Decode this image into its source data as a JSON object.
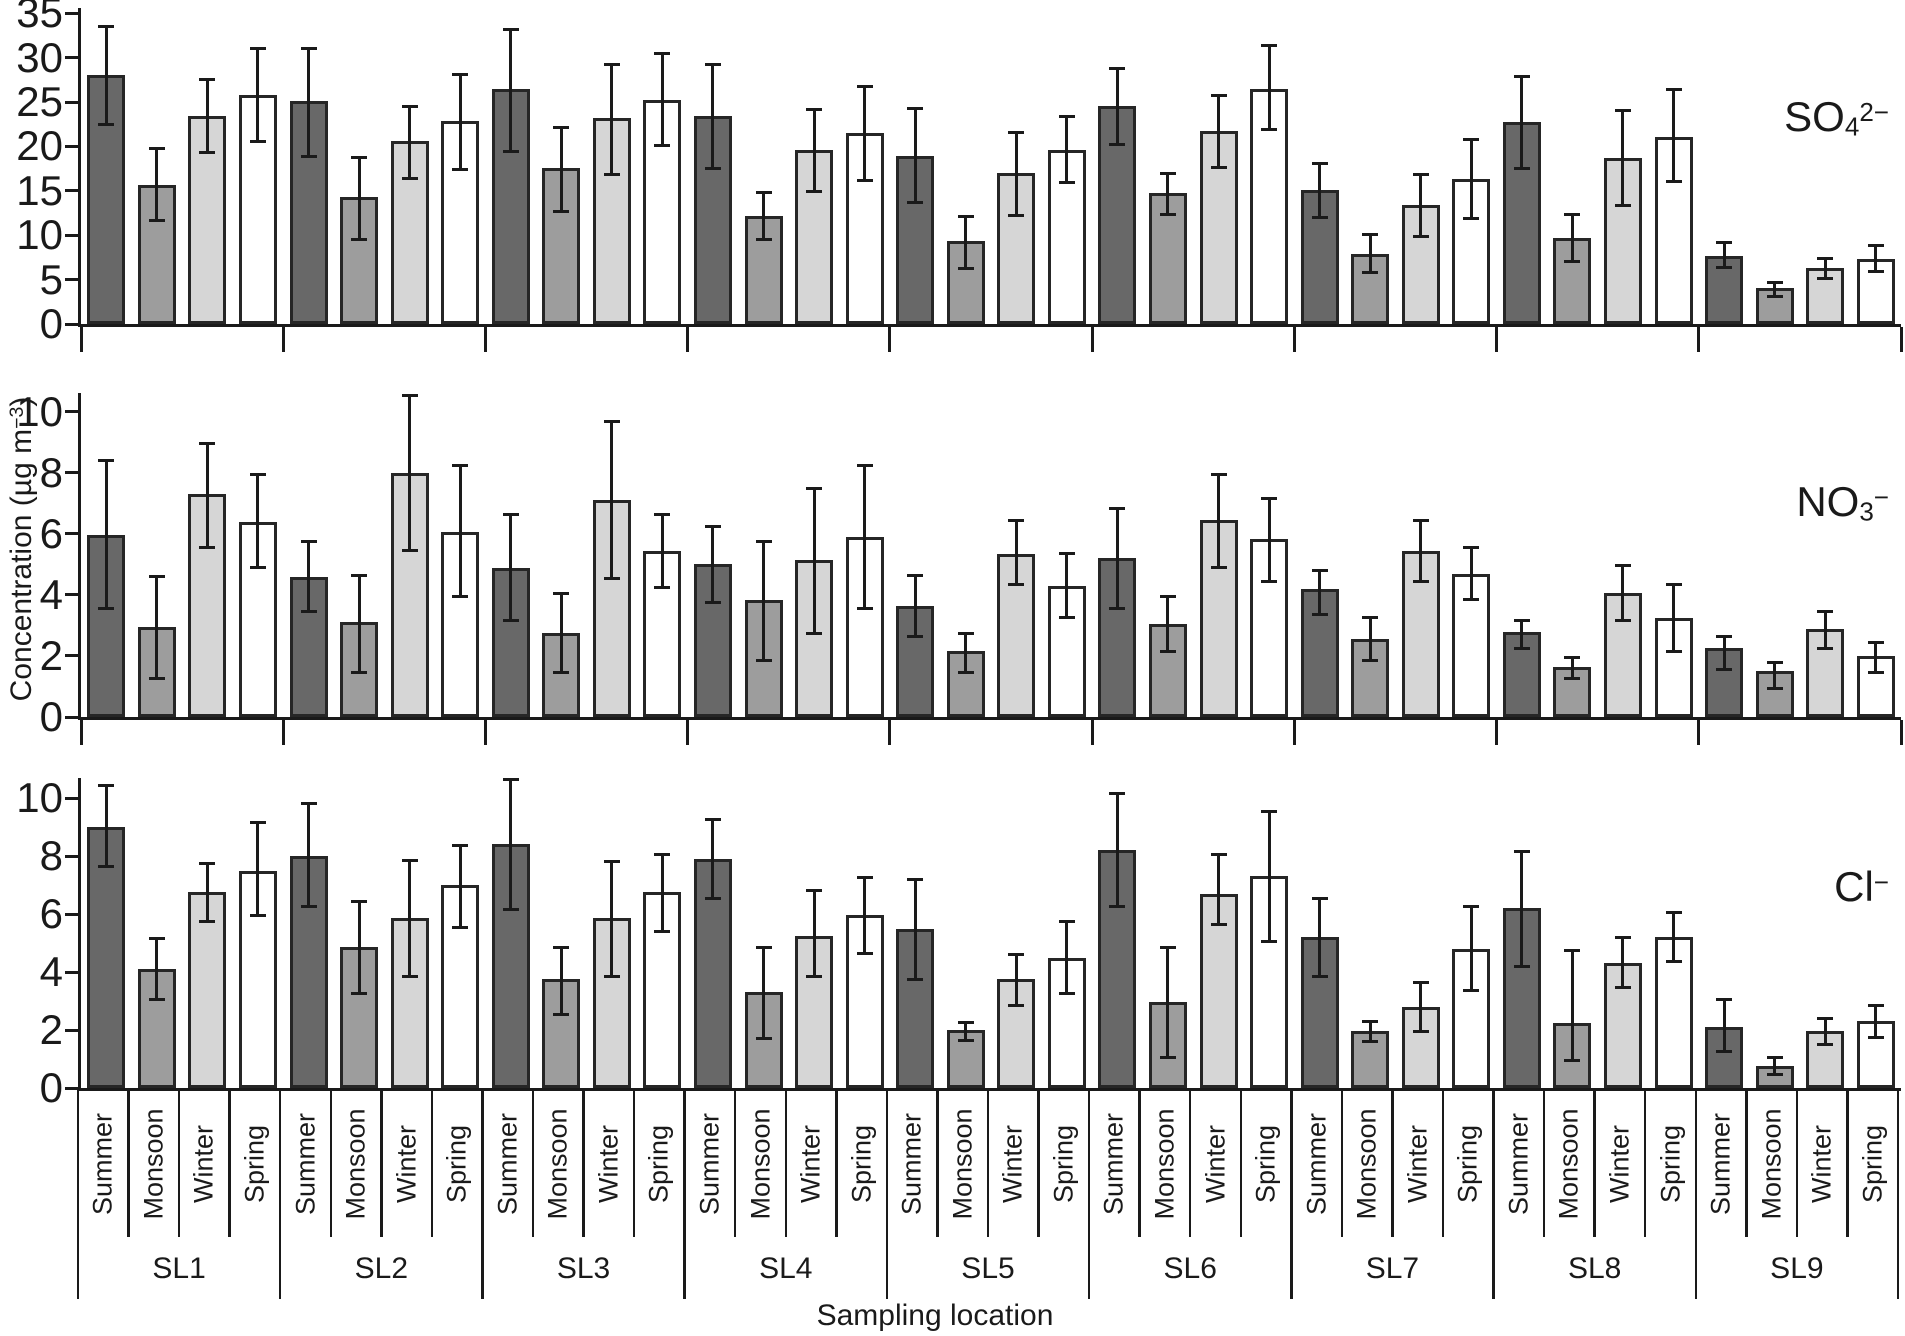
{
  "figure": {
    "xlabel": "Sampling location",
    "ylabel": "Concentration (µg m−3)",
    "ylabel_parts": [
      {
        "t": "Concentration (µg m"
      },
      {
        "t": "−3",
        "sup": true
      },
      {
        "t": ")"
      }
    ],
    "legend": "none (seasons labeled on x-axis)",
    "grid": "off",
    "colors": {
      "background": "#ffffff",
      "axis": "#1a1a1a",
      "bar_border": "#262626",
      "error_bar": "#1a1a1a",
      "summer": "#686868",
      "monsoon": "#9d9d9d",
      "winter": "#d6d6d6",
      "spring": "#ffffff"
    }
  },
  "seasons": [
    "Summer",
    "Monsoon",
    "Winter",
    "Spring"
  ],
  "locations": [
    "SL1",
    "SL2",
    "SL3",
    "SL4",
    "SL5",
    "SL6",
    "SL7",
    "SL8",
    "SL9"
  ],
  "chart_data": [
    {
      "type": "bar",
      "title": "SO₄²⁻",
      "title_parts": [
        {
          "t": "SO"
        },
        {
          "t": "4",
          "sub": true
        },
        {
          "t": "2−",
          "sup": true
        }
      ],
      "ylabel": "Concentration (µg m−3)",
      "ylim": [
        0,
        35.6
      ],
      "yticks": [
        0,
        5,
        10,
        15,
        20,
        25,
        30,
        35
      ],
      "categories": [
        "SL1",
        "SL2",
        "SL3",
        "SL4",
        "SL5",
        "SL6",
        "SL7",
        "SL8",
        "SL9"
      ],
      "series": [
        {
          "name": "Summer",
          "values": [
            28.1,
            25.1,
            26.5,
            23.4,
            18.9,
            24.6,
            15.1,
            22.8,
            7.7
          ],
          "err_lo": [
            22.3,
            18.7,
            19.3,
            17.4,
            13.5,
            20.1,
            11.8,
            17.4,
            6.2
          ],
          "err_hi": [
            33.7,
            31.2,
            33.4,
            29.4,
            24.4,
            29.0,
            18.2,
            28.0,
            9.4
          ]
        },
        {
          "name": "Monsoon",
          "values": [
            15.7,
            14.3,
            17.6,
            12.2,
            9.3,
            14.8,
            7.9,
            9.7,
            4.1
          ],
          "err_lo": [
            11.5,
            9.4,
            12.5,
            9.4,
            6.1,
            12.2,
            5.6,
            6.9,
            2.9
          ],
          "err_hi": [
            19.9,
            18.9,
            22.3,
            15.0,
            12.3,
            17.1,
            10.3,
            12.5,
            4.9
          ]
        },
        {
          "name": "Winter",
          "values": [
            23.4,
            20.6,
            23.2,
            19.6,
            17.0,
            21.7,
            13.4,
            18.7,
            6.3
          ],
          "err_lo": [
            19.2,
            16.2,
            16.7,
            14.8,
            12.1,
            17.5,
            9.7,
            13.2,
            5.0
          ],
          "err_hi": [
            27.7,
            24.7,
            29.4,
            24.3,
            21.7,
            25.9,
            17.0,
            24.2,
            7.6
          ]
        },
        {
          "name": "Spring",
          "values": [
            25.8,
            22.9,
            25.2,
            21.5,
            19.6,
            26.5,
            16.3,
            21.1,
            7.3
          ],
          "err_lo": [
            20.4,
            17.2,
            19.9,
            16.0,
            15.8,
            21.7,
            11.7,
            15.9,
            5.8
          ],
          "err_hi": [
            31.2,
            28.3,
            30.7,
            26.9,
            23.6,
            31.6,
            21.0,
            26.6,
            9.0
          ]
        }
      ]
    },
    {
      "type": "bar",
      "title": "NO₃⁻",
      "title_parts": [
        {
          "t": "NO"
        },
        {
          "t": "3",
          "sub": true
        },
        {
          "t": "−",
          "sup": true
        }
      ],
      "ylabel": "Concentration (µg m−3)",
      "ylim": [
        0,
        10.62
      ],
      "yticks": [
        0,
        2,
        4,
        6,
        8,
        10
      ],
      "categories": [
        "SL1",
        "SL2",
        "SL3",
        "SL4",
        "SL5",
        "SL6",
        "SL7",
        "SL8",
        "SL9"
      ],
      "series": [
        {
          "name": "Summer",
          "values": [
            5.95,
            4.6,
            4.9,
            5.0,
            3.65,
            5.2,
            4.2,
            2.8,
            2.25
          ],
          "err_lo": [
            3.5,
            3.4,
            3.1,
            3.7,
            2.6,
            3.5,
            3.3,
            2.2,
            1.5
          ],
          "err_hi": [
            8.45,
            5.8,
            6.7,
            6.3,
            4.7,
            6.9,
            4.85,
            3.2,
            2.7
          ]
        },
        {
          "name": "Monsoon",
          "values": [
            2.95,
            3.1,
            2.75,
            3.85,
            2.15,
            3.05,
            2.55,
            1.65,
            1.5
          ],
          "err_lo": [
            1.2,
            1.4,
            1.4,
            1.8,
            1.4,
            2.1,
            1.8,
            1.2,
            0.9
          ],
          "err_hi": [
            4.65,
            4.7,
            4.1,
            5.8,
            2.8,
            4.0,
            3.3,
            2.0,
            1.85
          ]
        },
        {
          "name": "Winter",
          "values": [
            7.3,
            8.0,
            7.1,
            5.15,
            5.35,
            6.45,
            5.45,
            4.05,
            2.9
          ],
          "err_lo": [
            5.5,
            5.4,
            4.5,
            2.7,
            4.3,
            4.85,
            4.4,
            3.1,
            2.2
          ],
          "err_hi": [
            9.0,
            10.6,
            9.75,
            7.55,
            6.5,
            8.0,
            6.5,
            5.0,
            3.5
          ]
        },
        {
          "name": "Spring",
          "values": [
            6.4,
            6.05,
            5.45,
            5.9,
            4.3,
            5.85,
            4.7,
            3.25,
            2.0
          ],
          "err_lo": [
            4.85,
            3.9,
            4.2,
            3.5,
            3.2,
            4.4,
            3.8,
            2.1,
            1.4
          ],
          "err_hi": [
            8.0,
            8.3,
            6.7,
            8.3,
            5.4,
            7.2,
            5.6,
            4.4,
            2.5
          ]
        }
      ]
    },
    {
      "type": "bar",
      "title": "Cl⁻",
      "title_parts": [
        {
          "t": "Cl"
        },
        {
          "t": "−",
          "sup": true
        }
      ],
      "ylabel": "Concentration (µg m−3)",
      "ylim": [
        0,
        10.69
      ],
      "yticks": [
        0,
        2,
        4,
        6,
        8,
        10
      ],
      "categories": [
        "SL1",
        "SL2",
        "SL3",
        "SL4",
        "SL5",
        "SL6",
        "SL7",
        "SL8",
        "SL9"
      ],
      "series": [
        {
          "name": "Summer",
          "values": [
            9.0,
            8.0,
            8.4,
            7.9,
            5.5,
            8.2,
            5.2,
            6.2,
            2.1
          ],
          "err_lo": [
            7.6,
            6.2,
            6.1,
            6.5,
            3.7,
            6.2,
            3.8,
            4.15,
            1.2
          ],
          "err_hi": [
            10.5,
            9.85,
            10.7,
            9.3,
            7.25,
            10.2,
            6.6,
            8.2,
            3.1
          ]
        },
        {
          "name": "Monsoon",
          "values": [
            4.1,
            4.85,
            3.75,
            3.3,
            2.0,
            2.95,
            1.95,
            2.25,
            0.75
          ],
          "err_lo": [
            3.0,
            3.2,
            2.5,
            1.65,
            1.6,
            1.0,
            1.55,
            0.9,
            0.4
          ],
          "err_hi": [
            5.2,
            6.5,
            4.9,
            4.9,
            2.3,
            4.9,
            2.35,
            4.8,
            1.1
          ]
        },
        {
          "name": "Winter",
          "values": [
            6.75,
            5.85,
            5.85,
            5.25,
            3.75,
            6.7,
            2.8,
            4.3,
            1.95
          ],
          "err_lo": [
            5.7,
            3.8,
            3.8,
            3.8,
            2.8,
            5.6,
            1.9,
            3.4,
            1.45
          ],
          "err_hi": [
            7.8,
            7.9,
            7.85,
            6.85,
            4.65,
            8.1,
            3.7,
            5.25,
            2.45
          ]
        },
        {
          "name": "Spring",
          "values": [
            7.5,
            7.0,
            6.75,
            5.95,
            4.5,
            7.3,
            4.8,
            5.2,
            2.3
          ],
          "err_lo": [
            5.9,
            5.5,
            5.35,
            4.6,
            3.2,
            5.0,
            3.3,
            4.3,
            1.7
          ],
          "err_hi": [
            9.2,
            8.4,
            8.1,
            7.3,
            5.8,
            9.6,
            6.3,
            6.1,
            2.9
          ]
        }
      ]
    }
  ]
}
